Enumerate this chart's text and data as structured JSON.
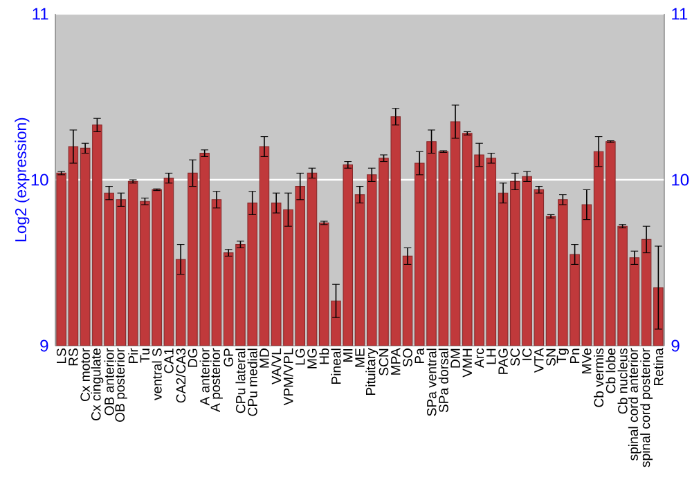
{
  "chart_data": {
    "type": "bar",
    "ylabel": "Log2 (expression)",
    "categories": [
      "LS",
      "RS",
      "Cx motor",
      "Cx cingulate",
      "OB anterior",
      "OB posterior",
      "Pir",
      "Tu",
      "ventral S",
      "CA1",
      "CA2/CA3",
      "DG",
      "A anterior",
      "A posterior",
      "GP",
      "CPu lateral",
      "CPu medial",
      "MD",
      "VA/VL",
      "VPM/VPL",
      "LG",
      "MG",
      "Hb",
      "Pineal",
      "MI",
      "ME",
      "Pituitary",
      "SCN",
      "MPA",
      "SO",
      "Pa",
      "SPa ventral",
      "SPa dorsal",
      "DM",
      "VMH",
      "Arc",
      "LH",
      "PAG",
      "SC",
      "IC",
      "VTA",
      "SN",
      "Tg",
      "Pn",
      "MVe",
      "Cb vermis",
      "Cb lobe",
      "Cb nucleus",
      "spinal cord anterior",
      "spinal cord posterior",
      "Retina"
    ],
    "values": [
      10.04,
      10.2,
      10.19,
      10.33,
      9.92,
      9.88,
      9.99,
      9.87,
      9.94,
      10.01,
      9.52,
      10.04,
      10.16,
      9.88,
      9.56,
      9.61,
      9.86,
      10.2,
      9.86,
      9.82,
      9.96,
      10.04,
      9.74,
      9.27,
      10.09,
      9.91,
      10.03,
      10.13,
      10.38,
      9.54,
      10.1,
      10.23,
      10.17,
      10.35,
      10.28,
      10.15,
      10.13,
      9.92,
      9.99,
      10.02,
      9.94,
      9.78,
      9.88,
      9.55,
      9.85,
      10.17,
      10.23,
      9.72,
      9.53,
      9.64,
      9.35
    ],
    "errors": [
      0.01,
      0.1,
      0.03,
      0.04,
      0.04,
      0.04,
      0.01,
      0.02,
      0.005,
      0.03,
      0.09,
      0.08,
      0.02,
      0.05,
      0.02,
      0.02,
      0.07,
      0.06,
      0.06,
      0.1,
      0.08,
      0.03,
      0.01,
      0.1,
      0.02,
      0.05,
      0.04,
      0.02,
      0.05,
      0.05,
      0.07,
      0.07,
      0.005,
      0.1,
      0.01,
      0.07,
      0.03,
      0.06,
      0.05,
      0.03,
      0.02,
      0.01,
      0.03,
      0.06,
      0.09,
      0.09,
      0.005,
      0.01,
      0.04,
      0.08,
      0.25
    ],
    "color": "#c0393b",
    "ylim": [
      9,
      11
    ],
    "yticks": [
      9,
      10,
      11
    ],
    "y2lim": [
      9,
      11
    ],
    "y2ticks": [
      9,
      10,
      11
    ],
    "grid": "y"
  }
}
